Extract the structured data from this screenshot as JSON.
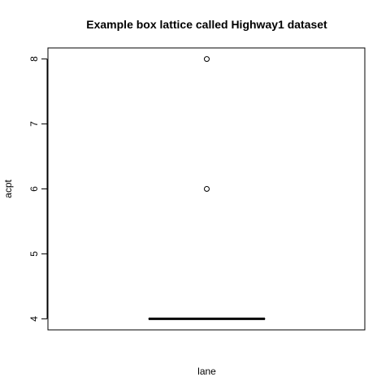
{
  "chart_data": {
    "type": "box",
    "title": "Example box lattice called Highway1 dataset",
    "xlabel": "lane",
    "ylabel": "acpt",
    "ylim": [
      3.83,
      8.17
    ],
    "y_ticks": [
      4,
      5,
      6,
      7,
      8
    ],
    "grid": false,
    "box": {
      "median": 4,
      "q1": 4,
      "q3": 4,
      "whisker_low": 4,
      "whisker_high": 4,
      "outliers": [
        6,
        8
      ]
    }
  }
}
